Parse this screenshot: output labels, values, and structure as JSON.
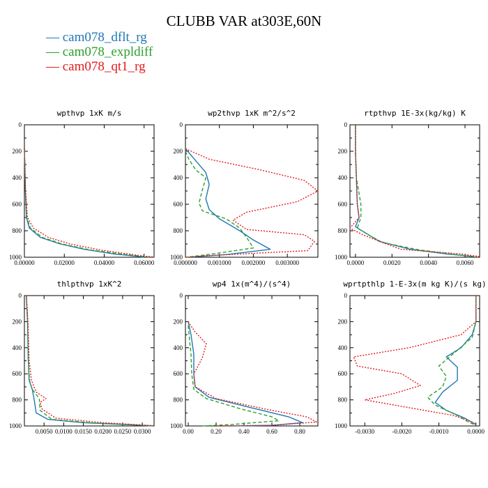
{
  "title": "CLUBB VAR at303E,60N",
  "legend": [
    {
      "label": "cam078_dflt_rg",
      "color": "#1f77b4",
      "dash": "solid"
    },
    {
      "label": "cam078_expldiff",
      "color": "#2ca02c",
      "dash": "dashed"
    },
    {
      "label": "cam078_qt1_rg",
      "color": "#e41a1c",
      "dash": "dotted"
    }
  ],
  "chart_data": [
    {
      "type": "line",
      "title": "wpthvp   1xK m/s",
      "xlim": [
        0,
        0.065
      ],
      "ylim": [
        1000,
        0
      ],
      "xticks": [
        0,
        0.02,
        0.04,
        0.06
      ],
      "xticklabels": [
        "0.00000",
        "0.02000",
        "0.04000",
        "0.06000"
      ],
      "yticks": [
        0,
        200,
        400,
        600,
        800,
        1000
      ],
      "series": [
        {
          "name": "cam078_dflt_rg",
          "points": [
            [
              0,
              180
            ],
            [
              0.0002,
              300
            ],
            [
              0.0005,
              500
            ],
            [
              0.001,
              700
            ],
            [
              0.0025,
              780
            ],
            [
              0.008,
              850
            ],
            [
              0.018,
              900
            ],
            [
              0.03,
              940
            ],
            [
              0.045,
              975
            ],
            [
              0.058,
              995
            ],
            [
              0.06,
              1000
            ]
          ]
        },
        {
          "name": "cam078_expldiff",
          "points": [
            [
              0,
              180
            ],
            [
              0.0002,
              300
            ],
            [
              0.0005,
              500
            ],
            [
              0.0012,
              700
            ],
            [
              0.003,
              780
            ],
            [
              0.009,
              850
            ],
            [
              0.019,
              900
            ],
            [
              0.033,
              945
            ],
            [
              0.05,
              978
            ],
            [
              0.062,
              998
            ],
            [
              0.064,
              1000
            ]
          ]
        },
        {
          "name": "cam078_qt1_rg",
          "points": [
            [
              0,
              180
            ],
            [
              0.0002,
              300
            ],
            [
              0.0006,
              500
            ],
            [
              0.0015,
              700
            ],
            [
              0.0045,
              780
            ],
            [
              0.012,
              850
            ],
            [
              0.023,
              900
            ],
            [
              0.038,
              945
            ],
            [
              0.052,
              975
            ],
            [
              0.06,
              992
            ],
            [
              0.065,
              998
            ]
          ]
        }
      ]
    },
    {
      "type": "line",
      "title": "wp2thvp   1xK m^2/s^2",
      "xlim": [
        0,
        0.0039
      ],
      "ylim": [
        1000,
        0
      ],
      "xticks": [
        0,
        0.001,
        0.002,
        0.003
      ],
      "xticklabels": [
        "0.000000",
        "0.001000",
        "0.002000",
        "0.003000"
      ],
      "yticks": [
        0,
        200,
        400,
        600,
        800,
        1000
      ],
      "series": [
        {
          "name": "cam078_dflt_rg",
          "points": [
            [
              0,
              180
            ],
            [
              0.0002,
              240
            ],
            [
              0.0006,
              360
            ],
            [
              0.0007,
              450
            ],
            [
              0.0006,
              560
            ],
            [
              0.0007,
              640
            ],
            [
              0.001,
              710
            ],
            [
              0.0016,
              800
            ],
            [
              0.002,
              870
            ],
            [
              0.0025,
              940
            ],
            [
              0.0012,
              980
            ],
            [
              0.0002,
              998
            ]
          ]
        },
        {
          "name": "cam078_expldiff",
          "points": [
            [
              0,
              200
            ],
            [
              0.0001,
              260
            ],
            [
              0.0003,
              340
            ],
            [
              0.0006,
              400
            ],
            [
              0.0005,
              490
            ],
            [
              0.0004,
              590
            ],
            [
              0.0005,
              650
            ],
            [
              0.0012,
              710
            ],
            [
              0.0016,
              780
            ],
            [
              0.0018,
              850
            ],
            [
              0.002,
              930
            ],
            [
              0.0008,
              975
            ],
            [
              0.0001,
              998
            ]
          ]
        },
        {
          "name": "cam078_qt1_rg",
          "points": [
            [
              0,
              180
            ],
            [
              0.0007,
              260
            ],
            [
              0.0022,
              340
            ],
            [
              0.0035,
              420
            ],
            [
              0.0039,
              500
            ],
            [
              0.0033,
              580
            ],
            [
              0.0018,
              660
            ],
            [
              0.0014,
              720
            ],
            [
              0.0018,
              790
            ],
            [
              0.0035,
              830
            ],
            [
              0.0038,
              880
            ],
            [
              0.0036,
              950
            ],
            [
              0.0005,
              990
            ],
            [
              0,
              1000
            ]
          ]
        }
      ]
    },
    {
      "type": "line",
      "title": "rtpthvp   1E-3x(kg/kg) K",
      "xlim": [
        -0.0003,
        0.0068
      ],
      "ylim": [
        1000,
        0
      ],
      "xticks": [
        0,
        0.002,
        0.004,
        0.006
      ],
      "xticklabels": [
        "0.0000",
        "0.0020",
        "0.0040",
        "0.0060"
      ],
      "yticks": [
        0,
        200,
        400,
        600,
        800,
        1000
      ],
      "series": [
        {
          "name": "cam078_dflt_rg",
          "points": [
            [
              0,
              0
            ],
            [
              0,
              200
            ],
            [
              5e-05,
              400
            ],
            [
              0.0001,
              600
            ],
            [
              0.0002,
              700
            ],
            [
              0,
              770
            ],
            [
              0.0006,
              820
            ],
            [
              0.0013,
              880
            ],
            [
              0.003,
              940
            ],
            [
              0.005,
              975
            ],
            [
              0.0065,
              995
            ]
          ]
        },
        {
          "name": "cam078_expldiff",
          "points": [
            [
              0,
              0
            ],
            [
              0,
              200
            ],
            [
              5e-05,
              400
            ],
            [
              0.0003,
              600
            ],
            [
              0.0003,
              700
            ],
            [
              0.0001,
              780
            ],
            [
              0.0007,
              830
            ],
            [
              0.0015,
              890
            ],
            [
              0.0035,
              945
            ],
            [
              0.0055,
              980
            ],
            [
              0.0066,
              998
            ]
          ]
        },
        {
          "name": "cam078_qt1_rg",
          "points": [
            [
              0,
              0
            ],
            [
              0,
              200
            ],
            [
              5e-05,
              400
            ],
            [
              0.0001,
              600
            ],
            [
              0.0002,
              700
            ],
            [
              -0.0003,
              780
            ],
            [
              0.0004,
              830
            ],
            [
              0.0017,
              900
            ],
            [
              0.0025,
              940
            ],
            [
              0.0058,
              975
            ],
            [
              0.0068,
              995
            ]
          ]
        }
      ]
    },
    {
      "type": "line",
      "title": "thlpthvp   1xK^2",
      "xlim": [
        0,
        0.033
      ],
      "ylim": [
        1000,
        0
      ],
      "xticks": [
        0.005,
        0.01,
        0.015,
        0.02,
        0.025,
        0.03
      ],
      "xticklabels": [
        "0.0050",
        "0.0100",
        "0.0150",
        "0.0200",
        "0.0250",
        "0.0300"
      ],
      "yticks": [
        0,
        200,
        400,
        600,
        800,
        1000
      ],
      "series": [
        {
          "name": "cam078_dflt_rg",
          "points": [
            [
              0.0005,
              0
            ],
            [
              0.0008,
              200
            ],
            [
              0.001,
              500
            ],
            [
              0.0012,
              650
            ],
            [
              0.002,
              720
            ],
            [
              0.0025,
              800
            ],
            [
              0.003,
              900
            ],
            [
              0.006,
              950
            ],
            [
              0.015,
              975
            ],
            [
              0.028,
              992
            ],
            [
              0.033,
              1000
            ]
          ]
        },
        {
          "name": "cam078_expldiff",
          "points": [
            [
              0.0005,
              0
            ],
            [
              0.0008,
              200
            ],
            [
              0.001,
              500
            ],
            [
              0.0013,
              650
            ],
            [
              0.002,
              720
            ],
            [
              0.0038,
              790
            ],
            [
              0.004,
              880
            ],
            [
              0.007,
              950
            ],
            [
              0.018,
              978
            ],
            [
              0.03,
              995
            ],
            [
              0.033,
              1000
            ]
          ]
        },
        {
          "name": "cam078_qt1_rg",
          "points": [
            [
              0.0005,
              0
            ],
            [
              0.0009,
              200
            ],
            [
              0.0012,
              500
            ],
            [
              0.0018,
              650
            ],
            [
              0.003,
              740
            ],
            [
              0.0055,
              790
            ],
            [
              0.004,
              820
            ],
            [
              0.0045,
              870
            ],
            [
              0.008,
              940
            ],
            [
              0.02,
              975
            ],
            [
              0.033,
              998
            ]
          ]
        }
      ]
    },
    {
      "type": "line",
      "title": "wp4   1x(m^4)/(s^4)",
      "xlim": [
        -0.02,
        0.93
      ],
      "ylim": [
        1000,
        0
      ],
      "xticks": [
        0,
        0.2,
        0.4,
        0.6,
        0.8
      ],
      "xticklabels": [
        "0.00",
        "0.20",
        "0.40",
        "0.60",
        "0.80"
      ],
      "yticks": [
        0,
        200,
        400,
        600,
        800,
        1000
      ],
      "series": [
        {
          "name": "cam078_dflt_rg",
          "points": [
            [
              0,
              200
            ],
            [
              0.02,
              300
            ],
            [
              0.04,
              450
            ],
            [
              0.04,
              600
            ],
            [
              0.05,
              700
            ],
            [
              0.15,
              780
            ],
            [
              0.45,
              860
            ],
            [
              0.72,
              930
            ],
            [
              0.82,
              975
            ],
            [
              0.6,
              995
            ],
            [
              0.3,
              1000
            ]
          ]
        },
        {
          "name": "cam078_expldiff",
          "points": [
            [
              0,
              230
            ],
            [
              0.01,
              350
            ],
            [
              0.02,
              450
            ],
            [
              0.025,
              600
            ],
            [
              0.04,
              720
            ],
            [
              0.13,
              790
            ],
            [
              0.38,
              870
            ],
            [
              0.6,
              930
            ],
            [
              0.65,
              960
            ],
            [
              0.3,
              990
            ],
            [
              0.1,
              1000
            ]
          ]
        },
        {
          "name": "cam078_qt1_rg",
          "points": [
            [
              0,
              200
            ],
            [
              0.05,
              280
            ],
            [
              0.13,
              370
            ],
            [
              0.1,
              480
            ],
            [
              0.04,
              600
            ],
            [
              0.05,
              700
            ],
            [
              0.2,
              790
            ],
            [
              0.55,
              870
            ],
            [
              0.85,
              930
            ],
            [
              0.92,
              970
            ],
            [
              0.6,
              995
            ],
            [
              0.2,
              1000
            ]
          ]
        }
      ]
    },
    {
      "type": "line",
      "title": "wprtpthlp   1-E-3x(m kg K)/(s kg)",
      "xlim": [
        -0.0034,
        0.0001
      ],
      "ylim": [
        1000,
        0
      ],
      "xticks": [
        -0.003,
        -0.002,
        -0.001,
        0
      ],
      "xticklabels": [
        "-0.0030",
        "-0.0020",
        "-0.0010",
        "0.0000"
      ],
      "yticks": [
        0,
        200,
        400,
        600,
        800,
        1000
      ],
      "series": [
        {
          "name": "cam078_dflt_rg",
          "points": [
            [
              0,
              0
            ],
            [
              0,
              200
            ],
            [
              -0.0001,
              300
            ],
            [
              -0.0004,
              400
            ],
            [
              -0.0008,
              470
            ],
            [
              -0.0005,
              550
            ],
            [
              -0.0005,
              650
            ],
            [
              -0.0009,
              740
            ],
            [
              -0.0011,
              820
            ],
            [
              -0.0008,
              880
            ],
            [
              -0.0003,
              940
            ],
            [
              0,
              990
            ]
          ]
        },
        {
          "name": "cam078_expldiff",
          "points": [
            [
              0,
              0
            ],
            [
              0,
              200
            ],
            [
              -0.0001,
              320
            ],
            [
              -0.0005,
              420
            ],
            [
              -0.001,
              540
            ],
            [
              -0.0008,
              620
            ],
            [
              -0.0009,
              700
            ],
            [
              -0.0013,
              780
            ],
            [
              -0.0011,
              840
            ],
            [
              -0.0005,
              920
            ],
            [
              -0.0002,
              970
            ],
            [
              0,
              995
            ]
          ]
        },
        {
          "name": "cam078_qt1_rg",
          "points": [
            [
              0,
              0
            ],
            [
              0,
              200
            ],
            [
              -0.0004,
              300
            ],
            [
              -0.0018,
              400
            ],
            [
              -0.0033,
              470
            ],
            [
              -0.0032,
              540
            ],
            [
              -0.002,
              600
            ],
            [
              -0.0015,
              690
            ],
            [
              -0.0022,
              750
            ],
            [
              -0.003,
              800
            ],
            [
              -0.0018,
              860
            ],
            [
              -0.0006,
              920
            ],
            [
              -0.0001,
              970
            ],
            [
              0,
              990
            ]
          ]
        }
      ]
    }
  ]
}
